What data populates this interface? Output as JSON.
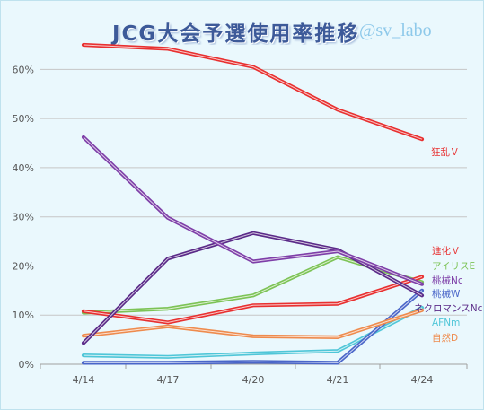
{
  "header": {
    "title": "JCG大会予選使用率推移",
    "credit": "@sv_labo"
  },
  "chart_data": {
    "type": "line",
    "title": "JCG大会予選使用率推移",
    "x": [
      "4/14",
      "4/17",
      "4/20",
      "4/21",
      "4/24"
    ],
    "ylim": [
      0,
      0.65
    ],
    "yticks": [
      "0%",
      "10%",
      "20%",
      "30%",
      "40%",
      "50%",
      "60%"
    ],
    "grid": true,
    "series": [
      {
        "name": "狂乱Ｖ",
        "color": "#e83030",
        "values": [
          0.65,
          0.642,
          0.605,
          0.518,
          0.458
        ]
      },
      {
        "name": "進化Ｖ",
        "color": "#e83030",
        "values": [
          0.108,
          0.085,
          0.12,
          0.123,
          0.178
        ]
      },
      {
        "name": "アイリスE",
        "color": "#7cc356",
        "values": [
          0.105,
          0.113,
          0.14,
          0.218,
          0.167
        ]
      },
      {
        "name": "桃械Nc",
        "color": "#7e3fa8",
        "values": [
          0.462,
          0.298,
          0.209,
          0.23,
          0.163
        ]
      },
      {
        "name": "桃械W",
        "color": "#4a66c9",
        "values": [
          0.003,
          0.003,
          0.005,
          0.003,
          0.15
        ]
      },
      {
        "name": "ネクロマンスNc",
        "color": "#5a2a88",
        "values": [
          0.043,
          0.215,
          0.267,
          0.233,
          0.14
        ]
      },
      {
        "name": "AFNm",
        "color": "#4fc6d8",
        "values": [
          0.018,
          0.015,
          0.022,
          0.027,
          0.115
        ]
      },
      {
        "name": "自然D",
        "color": "#ee8b4e",
        "values": [
          0.058,
          0.077,
          0.057,
          0.055,
          0.11
        ]
      }
    ]
  }
}
